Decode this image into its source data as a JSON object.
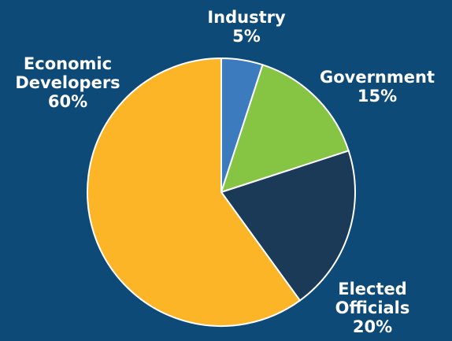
{
  "background_color": "#0d4a78",
  "chart_data": {
    "type": "pie",
    "title": "",
    "slices": [
      {
        "label_lines": [
          "Industry"
        ],
        "value_label": "5%",
        "value": 5,
        "color": "#3d7bbf"
      },
      {
        "label_lines": [
          "Government"
        ],
        "value_label": "15%",
        "value": 15,
        "color": "#86c544"
      },
      {
        "label_lines": [
          "Elected",
          "Officials"
        ],
        "value_label": "20%",
        "value": 20,
        "color": "#1b3a57"
      },
      {
        "label_lines": [
          "Economic",
          "Developers"
        ],
        "value_label": "60%",
        "value": 60,
        "color": "#fbb527"
      }
    ],
    "start_angle": "12 o'clock",
    "direction": "clockwise"
  }
}
